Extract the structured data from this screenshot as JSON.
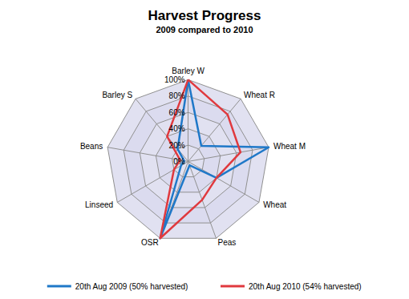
{
  "chart_data": {
    "type": "radar",
    "title": "Harvest Progress",
    "subtitle": "2009 compared to 2010",
    "categories": [
      "Barley W",
      "Barley S",
      "Beans",
      "Linseed",
      "OSR",
      "Peas",
      "Wheat",
      "Wheat M",
      "Wheat R"
    ],
    "series": [
      {
        "name": "20th Aug 2009 (50% harvested)",
        "color": "#1f78c8",
        "values": [
          100,
          20,
          5,
          10,
          100,
          5,
          40,
          100,
          25
        ]
      },
      {
        "name": "20th Aug 2010 (54% harvested)",
        "color": "#e0393e",
        "values": [
          100,
          40,
          10,
          20,
          100,
          50,
          40,
          65,
          75
        ]
      }
    ],
    "ylim": [
      0,
      100
    ],
    "yticks": [
      {
        "value": 0,
        "label": "0%"
      },
      {
        "value": 20,
        "label": "20%"
      },
      {
        "value": 40,
        "label": "40%"
      },
      {
        "value": 60,
        "label": "60%"
      },
      {
        "value": 80,
        "label": "80%"
      },
      {
        "value": 100,
        "label": "100%"
      }
    ],
    "grid": true,
    "legend": "bottom"
  }
}
